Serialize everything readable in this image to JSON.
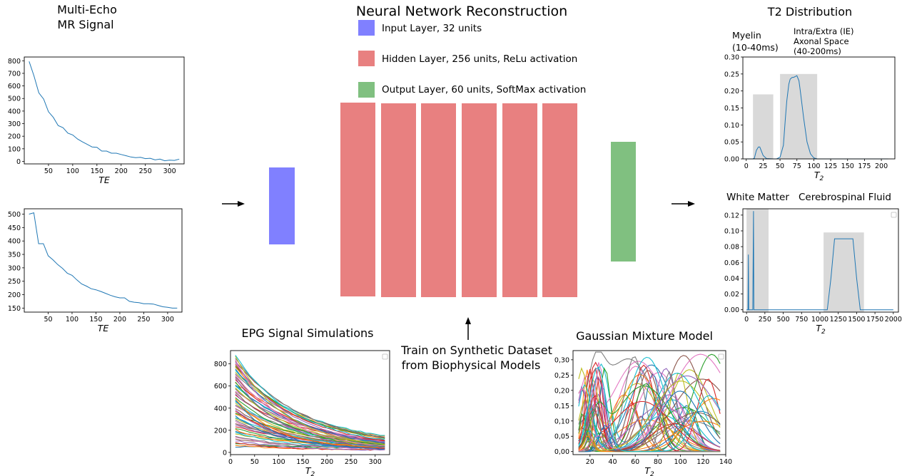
{
  "title": "Neural Network Reconstruction",
  "input_section": {
    "title_line1": "Multi-Echo",
    "title_line2": "MR Signal"
  },
  "legend": {
    "input": "Input Layer, 32 units",
    "hidden": "Hidden Layer, 256 units, ReLu activation",
    "output": "Output Layer, 60 units, SoftMax activation"
  },
  "colors": {
    "input": "#8080ff",
    "hidden": "#e88080",
    "output": "#80c080",
    "line": "#1f77b4",
    "shade": "#d9d9d9"
  },
  "train_label": {
    "line1": "Train on Synthetic Dataset",
    "line2": "from Biophysical Models"
  },
  "epg_title": "EPG Signal Simulations",
  "gmm_title": "Gaussian Mixture Model",
  "t2_title": "T2 Distribution",
  "t2_labels": {
    "myelin_1": "Myelin",
    "myelin_2": "(10-40ms)",
    "ie_1": "Intra/Extra (IE)",
    "ie_2": "Axonal Space",
    "ie_3": "(40-200ms)",
    "wm": "White Matter",
    "csf": "Cerebrospinal Fluid"
  },
  "chart_data": [
    {
      "id": "signal1",
      "type": "line",
      "xlabel": "TE",
      "xlim": [
        0,
        330
      ],
      "ylim": [
        -20,
        830
      ],
      "xticks": [
        "50",
        "100",
        "150",
        "200",
        "250",
        "300"
      ],
      "yticks": [
        "0",
        "100",
        "200",
        "300",
        "400",
        "500",
        "600",
        "700",
        "800"
      ],
      "x": [
        10,
        20,
        30,
        40,
        50,
        60,
        70,
        80,
        90,
        100,
        110,
        120,
        130,
        140,
        150,
        160,
        170,
        180,
        190,
        200,
        210,
        220,
        230,
        240,
        250,
        260,
        270,
        280,
        290,
        300,
        310,
        320
      ],
      "values": [
        795,
        680,
        545,
        495,
        395,
        350,
        285,
        268,
        225,
        210,
        178,
        155,
        135,
        115,
        112,
        82,
        82,
        65,
        65,
        55,
        45,
        35,
        30,
        32,
        22,
        25,
        12,
        18,
        5,
        10,
        8,
        18
      ]
    },
    {
      "id": "signal2",
      "type": "line",
      "xlabel": "TE",
      "xlim": [
        0,
        330
      ],
      "ylim": [
        135,
        520
      ],
      "xticks": [
        "50",
        "100",
        "150",
        "200",
        "250",
        "300"
      ],
      "yticks": [
        "150",
        "200",
        "250",
        "300",
        "350",
        "400",
        "450",
        "500"
      ],
      "x": [
        10,
        20,
        30,
        40,
        50,
        60,
        70,
        80,
        90,
        100,
        110,
        120,
        130,
        140,
        150,
        160,
        170,
        180,
        190,
        200,
        210,
        220,
        230,
        240,
        250,
        260,
        270,
        280,
        290,
        300,
        310,
        320
      ],
      "values": [
        500,
        505,
        390,
        390,
        345,
        330,
        312,
        298,
        280,
        272,
        255,
        240,
        232,
        222,
        218,
        212,
        205,
        198,
        192,
        188,
        188,
        175,
        172,
        170,
        166,
        166,
        165,
        160,
        155,
        153,
        150,
        150
      ]
    },
    {
      "id": "epg",
      "type": "line",
      "xlabel": "T2",
      "xlim": [
        0,
        330
      ],
      "ylim": [
        -20,
        920
      ],
      "xticks": [
        "0",
        "50",
        "100",
        "150",
        "200",
        "250",
        "300"
      ],
      "yticks": [
        "0",
        "200",
        "400",
        "600",
        "800"
      ],
      "series_count": 60
    },
    {
      "id": "gmm",
      "type": "line",
      "xlabel": "T2",
      "xlim": [
        5,
        140
      ],
      "ylim": [
        -0.01,
        0.33
      ],
      "xticks": [
        "20",
        "40",
        "60",
        "80",
        "100",
        "120",
        "140"
      ],
      "yticks": [
        "0,00",
        "0,05",
        "0,10",
        "0,15",
        "0,20",
        "0,25",
        "0,30"
      ],
      "series_count": 50
    },
    {
      "id": "t2a",
      "type": "line",
      "xlabel": "T2",
      "xlim": [
        -5,
        220
      ],
      "ylim": [
        0,
        0.3
      ],
      "xticks": [
        "0",
        "25",
        "50",
        "75",
        "100",
        "125",
        "150",
        "175",
        "200"
      ],
      "yticks": [
        "0.00",
        "0.05",
        "0.10",
        "0.15",
        "0.20",
        "0.25",
        "0.30"
      ],
      "shaded": [
        {
          "x0": 10,
          "x1": 40,
          "y": 0.19
        },
        {
          "x0": 50,
          "x1": 105,
          "y": 0.25
        }
      ],
      "x": [
        0,
        5,
        10,
        12,
        15,
        18,
        20,
        25,
        30,
        40,
        45,
        50,
        55,
        58,
        60,
        63,
        65,
        68,
        70,
        73,
        75,
        78,
        80,
        85,
        90,
        95,
        100,
        105,
        120,
        150,
        200,
        210
      ],
      "values": [
        0,
        0,
        0,
        0.002,
        0.025,
        0.035,
        0.035,
        0.01,
        0.001,
        0,
        0,
        0.005,
        0.04,
        0.12,
        0.17,
        0.22,
        0.235,
        0.24,
        0.24,
        0.243,
        0.245,
        0.23,
        0.2,
        0.12,
        0.05,
        0.015,
        0.003,
        0,
        0,
        0,
        0,
        0
      ]
    },
    {
      "id": "t2b",
      "type": "line",
      "xlabel": "T2",
      "xlim": [
        -50,
        2070
      ],
      "ylim": [
        -0.003,
        0.128
      ],
      "xticks": [
        "0",
        "250",
        "500",
        "750",
        "1000",
        "1250",
        "1500",
        "1750",
        "2000"
      ],
      "yticks": [
        "0.00",
        "0.02",
        "0.04",
        "0.06",
        "0.08",
        "0.10",
        "0.12"
      ],
      "shaded": [
        {
          "x0": 0,
          "x1": 300,
          "y": 0.128
        },
        {
          "x0": 1050,
          "x1": 1600,
          "y": 0.098
        }
      ],
      "x": [
        0,
        20,
        25,
        30,
        45,
        60,
        75,
        85,
        95,
        100,
        110,
        300,
        1000,
        1100,
        1150,
        1200,
        1250,
        1450,
        1500,
        1550,
        1600,
        2000
      ],
      "values": [
        0,
        0,
        0.07,
        0,
        0,
        0,
        0,
        0,
        0.125,
        0,
        0,
        0,
        0,
        0,
        0.04,
        0.09,
        0.09,
        0.09,
        0.04,
        0,
        0,
        0
      ]
    }
  ]
}
